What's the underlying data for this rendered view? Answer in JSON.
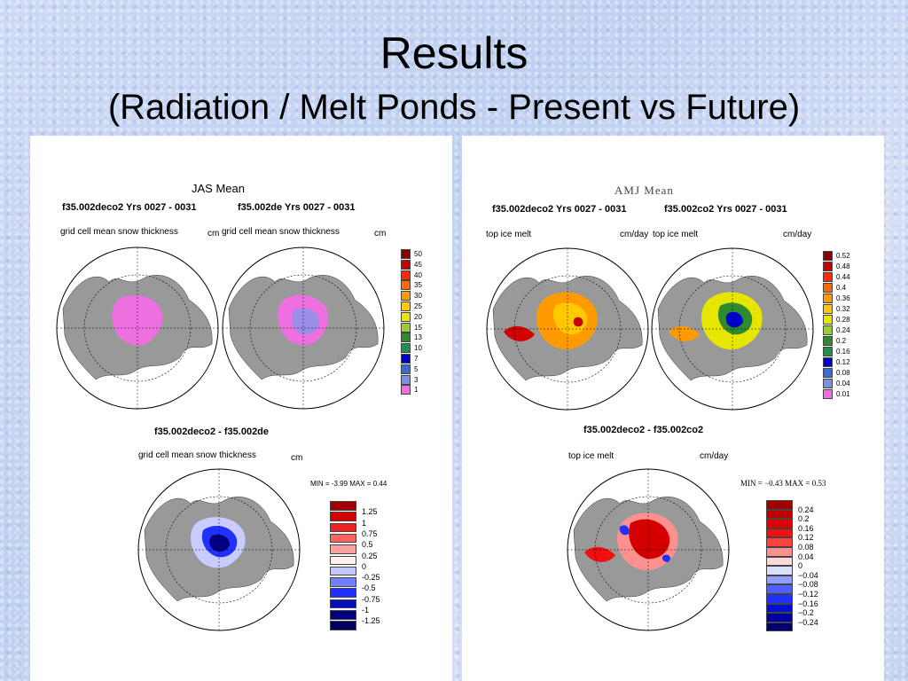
{
  "slide": {
    "title": "Results",
    "subtitle": "(Radiation / Melt Ponds - Present vs Future)"
  },
  "left_figure": {
    "header": "JAS Mean",
    "run_a": "f35.002deco2  Yrs 0027 - 0031",
    "run_b": "f35.002de  Yrs 0027 - 0031",
    "var_a": "grid cell mean snow thickness",
    "unit_a": "cm",
    "var_b": "grid cell mean snow thickness",
    "unit_b": "cm",
    "colorbar": [
      "50",
      "45",
      "40",
      "35",
      "30",
      "25",
      "20",
      "15",
      "13",
      "10",
      "7",
      "5",
      "3",
      "1"
    ],
    "colorbar_colors": [
      "#8b0000",
      "#c80000",
      "#ff2a00",
      "#ff6a00",
      "#ff9a00",
      "#ffc800",
      "#e6e600",
      "#9acd32",
      "#2e8b2e",
      "#1e9050",
      "#0000cd",
      "#3a6cd8",
      "#7b8ee8",
      "#ee70e0"
    ],
    "diff_title": "f35.002deco2 - f35.002de",
    "diff_var": "grid cell mean snow thickness",
    "diff_unit": "cm",
    "minmax": "MIN =  -3.99 MAX =    0.44",
    "diff_colorbar": [
      "1.25",
      "1",
      "0.75",
      "0.5",
      "0.25",
      "0",
      "-0.25",
      "-0.5",
      "-0.75",
      "-1",
      "-1.25"
    ],
    "diff_colors": [
      "#a00000",
      "#d40000",
      "#f02020",
      "#ff6060",
      "#ffa0a0",
      "#fff0f0",
      "#c0c8ff",
      "#7080ff",
      "#2030ff",
      "#0010c0",
      "#000080",
      "#000060"
    ]
  },
  "right_figure": {
    "header": "AMJ Mean",
    "run_a": "f35.002deco2  Yrs 0027 - 0031",
    "run_b": "f35.002co2  Yrs 0027 - 0031",
    "var_a": "top ice melt",
    "unit_a": "cm/day",
    "var_b": "top ice melt",
    "unit_b": "cm/day",
    "colorbar": [
      "0.52",
      "0.48",
      "0.44",
      "0.4",
      "0.36",
      "0.32",
      "0.28",
      "0.24",
      "0.2",
      "0.16",
      "0.12",
      "0.08",
      "0.04",
      "0.01"
    ],
    "colorbar_colors": [
      "#8b0000",
      "#c80000",
      "#ff2a00",
      "#ff6a00",
      "#ff9a00",
      "#ffc800",
      "#e6e600",
      "#9acd32",
      "#2e8b2e",
      "#1e9050",
      "#0000cd",
      "#3a6cd8",
      "#7b8ee8",
      "#ee70e0"
    ],
    "diff_title": "f35.002deco2 - f35.002co2",
    "diff_var": "top ice melt",
    "diff_unit": "cm/day",
    "minmax": "MIN =   −0.43  MAX =      0.53",
    "diff_colorbar": [
      "0.24",
      "0.2",
      "0.16",
      "0.12",
      "0.08",
      "0.04",
      "0",
      "−0.04",
      "−0.08",
      "−0.12",
      "−0.16",
      "−0.2",
      "−0.24"
    ],
    "diff_colors": [
      "#a00000",
      "#c00000",
      "#e00000",
      "#f01010",
      "#ff4040",
      "#ff9090",
      "#ffd8d8",
      "#d8e0ff",
      "#90a0ff",
      "#5060ff",
      "#2030ff",
      "#0010d0",
      "#0000a0",
      "#000070"
    ]
  }
}
